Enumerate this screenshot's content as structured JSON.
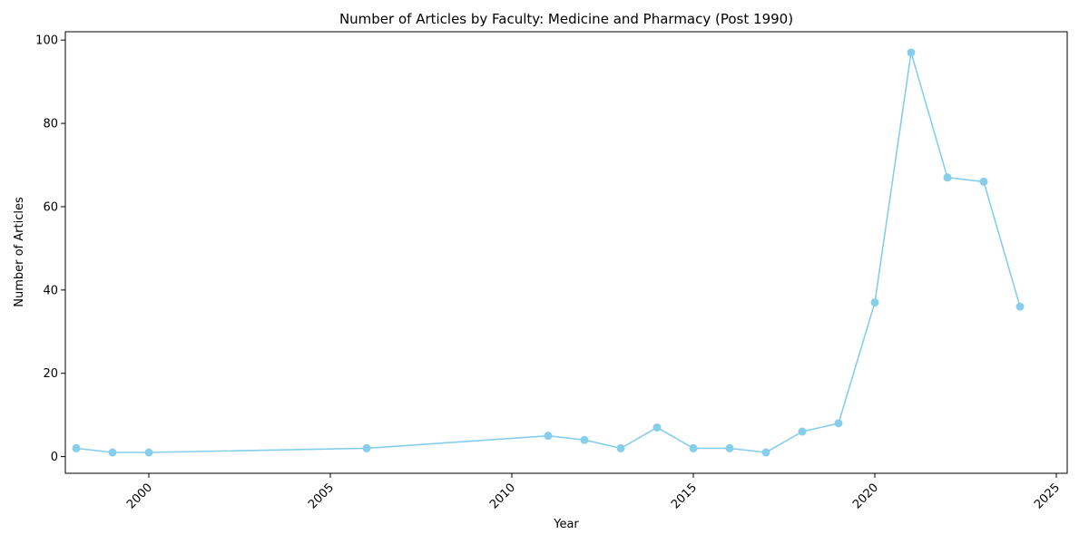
{
  "chart_data": {
    "type": "line",
    "title": "Number of Articles by Faculty: Medicine and Pharmacy (Post 1990)",
    "xlabel": "Year",
    "ylabel": "Number of Articles",
    "x": [
      1998,
      1999,
      2000,
      2006,
      2011,
      2012,
      2013,
      2014,
      2015,
      2016,
      2017,
      2018,
      2019,
      2020,
      2021,
      2022,
      2023,
      2024
    ],
    "series": [
      {
        "values": [
          2,
          1,
          1,
          2,
          5,
          4,
          2,
          7,
          2,
          2,
          1,
          6,
          8,
          37,
          97,
          67,
          66,
          36
        ]
      }
    ],
    "xlim": [
      1997.7,
      2025.3
    ],
    "ylim": [
      -4,
      102
    ],
    "xticks": [
      "2000",
      "2005",
      "2010",
      "2015",
      "2020",
      "2025"
    ],
    "yticks": [
      "0",
      "20",
      "40",
      "60",
      "80",
      "100"
    ],
    "color": "#87CEEB",
    "grid": false,
    "legend": "none"
  }
}
